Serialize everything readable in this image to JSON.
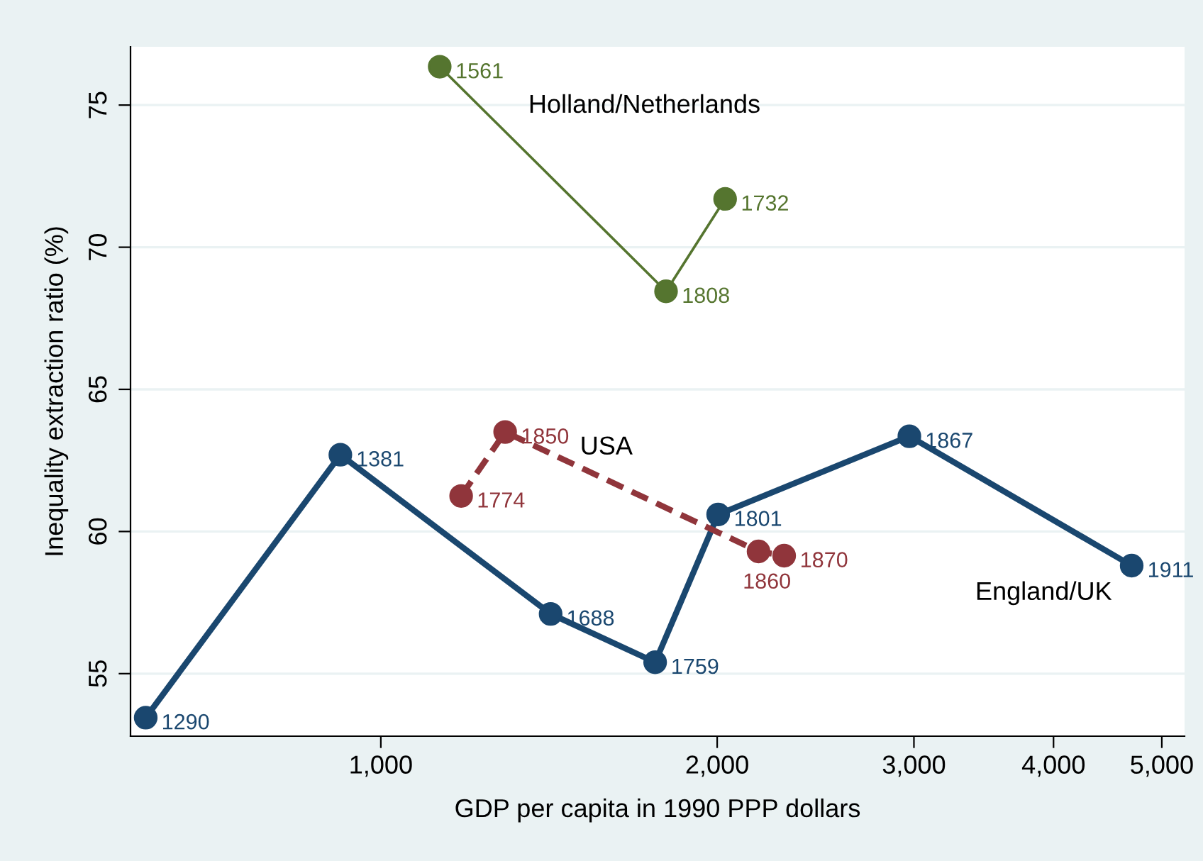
{
  "chart_data": {
    "type": "line",
    "xlabel": "GDP per capita in 1990 PPP dollars",
    "ylabel": "Inequality extraction ratio (%)",
    "log": "x",
    "xlim": [
      597,
      5240
    ],
    "xticks": [
      {
        "value": 1000,
        "label": "1,000"
      },
      {
        "value": 2000,
        "label": "2,000"
      },
      {
        "value": 3000,
        "label": "3,000"
      },
      {
        "value": 4000,
        "label": "4,000"
      },
      {
        "value": 5000,
        "label": "5,000"
      }
    ],
    "ylim": [
      52.8,
      77.05
    ],
    "yticks": [
      55,
      60,
      65,
      70,
      75
    ],
    "grid": "y",
    "marker": "circle",
    "series": [
      {
        "name": "England/UK",
        "color": "#1a476f",
        "line_style": "solid",
        "x": [
          616,
          920,
          1419,
          1760,
          2004,
          2972,
          4699
        ],
        "values": [
          53.45,
          62.7,
          57.1,
          55.4,
          60.6,
          63.35,
          58.8
        ]
      },
      {
        "name": "Holland/Netherlands",
        "color": "#55752f",
        "line_style": "solid",
        "x": [
          1129,
          1800,
          2033
        ],
        "values": [
          76.35,
          68.45,
          71.7
        ]
      },
      {
        "name": "USA",
        "color": "#90353b",
        "line_style": "dashed",
        "x": [
          1180,
          1292,
          2178,
          2296
        ],
        "values": [
          61.25,
          63.5,
          59.3,
          59.15
        ]
      }
    ],
    "annotations": [
      {
        "text": "1290",
        "x": 616,
        "y": 53.45
      },
      {
        "text": "1381",
        "x": 920,
        "y": 62.7
      },
      {
        "text": "1688",
        "x": 1419,
        "y": 57.1
      },
      {
        "text": "1759",
        "x": 1760,
        "y": 55.4
      },
      {
        "text": "1801",
        "x": 2004,
        "y": 60.6
      },
      {
        "text": "1867",
        "x": 2972,
        "y": 63.35
      },
      {
        "text": "1911",
        "x": 4699,
        "y": 58.8
      },
      {
        "text": "1561",
        "x": 1129,
        "y": 76.35
      },
      {
        "text": "1808",
        "x": 1800,
        "y": 68.45
      },
      {
        "text": "1732",
        "x": 2033,
        "y": 71.7
      },
      {
        "text": "1774",
        "x": 1180,
        "y": 61.25
      },
      {
        "text": "1850",
        "x": 1292,
        "y": 63.5
      },
      {
        "text": "1860",
        "x": 2178,
        "y": 59.3
      },
      {
        "text": "1870",
        "x": 2296,
        "y": 59.15
      }
    ]
  }
}
